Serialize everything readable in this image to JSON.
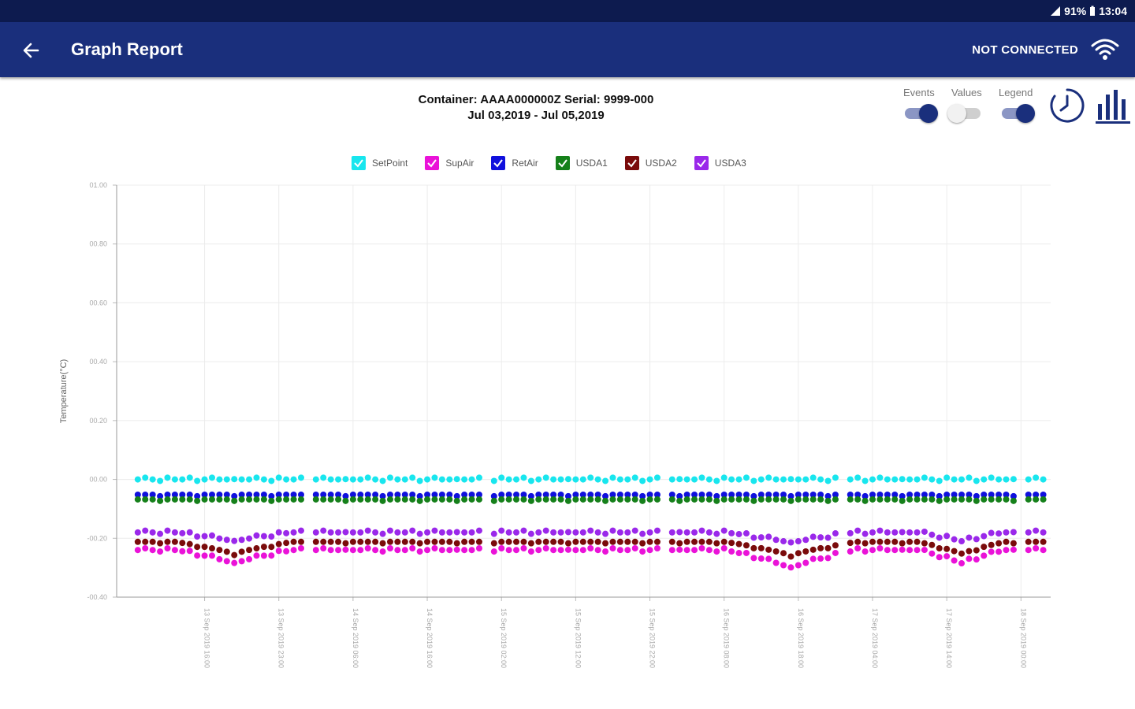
{
  "status_bar": {
    "battery": "91%",
    "time": "13:04"
  },
  "app_bar": {
    "title": "Graph Report",
    "connection_status": "NOT CONNECTED"
  },
  "header": {
    "container_line": "Container: AAAA000000Z Serial: 9999-000",
    "date_range": "Jul 03,2019 - Jul 05,2019"
  },
  "toggles": [
    {
      "label": "Events",
      "state": "on"
    },
    {
      "label": "Values",
      "state": "off"
    },
    {
      "label": "Legend",
      "state": "on"
    }
  ],
  "colors": {
    "primary": "#1a2f7c",
    "status_bar": "#0d1b4f"
  },
  "chart_data": {
    "type": "scatter",
    "title": "",
    "xlabel": "",
    "ylabel": "Temperature(°C)",
    "ylim": [
      -0.4,
      1.0
    ],
    "yticks": [
      "01.00",
      "00.80",
      "00.60",
      "00.40",
      "00.20",
      "00.00",
      "-00.20",
      "-00.40"
    ],
    "ytick_values": [
      1.0,
      0.8,
      0.6,
      0.4,
      0.2,
      0.0,
      -0.2,
      -0.4
    ],
    "xlim": [
      0,
      125
    ],
    "x_tick_positions": [
      11,
      21,
      31,
      41,
      51,
      61,
      71,
      81,
      91,
      101,
      111,
      121
    ],
    "x_tick_labels": [
      "13 Sep 2019 16:00",
      "13 Sep 2019 23:00",
      "14 Sep 2019 06:00",
      "14 Sep 2019 16:00",
      "15 Sep 2019 02:00",
      "15 Sep 2019 12:00",
      "15 Sep 2019 22:00",
      "16 Sep 2019 08:00",
      "16 Sep 2019 18:00",
      "17 Sep 2019 04:00",
      "17 Sep 2019 14:00",
      "18 Sep 2019 00:00"
    ],
    "segments": [
      [
        2,
        24
      ],
      [
        26,
        48
      ],
      [
        50,
        72
      ],
      [
        74,
        96
      ],
      [
        98,
        120
      ],
      [
        122,
        124
      ]
    ],
    "legend_position": "top-center",
    "series": [
      {
        "name": "SetPoint",
        "color": "#18e6ee",
        "base": 0.0,
        "dips": []
      },
      {
        "name": "SupAir",
        "color": "#ea12d8",
        "base": -0.24,
        "dips": [
          {
            "center": 15,
            "width": 8,
            "depth": -0.045
          },
          {
            "center": 90,
            "width": 9,
            "depth": -0.06
          },
          {
            "center": 113,
            "width": 6,
            "depth": -0.045
          }
        ]
      },
      {
        "name": "RetAir",
        "color": "#1010dd",
        "base": -0.052,
        "dips": []
      },
      {
        "name": "USDA1",
        "color": "#15801a",
        "base": -0.068,
        "dips": []
      },
      {
        "name": "USDA2",
        "color": "#7a0b0b",
        "base": -0.212,
        "dips": [
          {
            "center": 15,
            "width": 8,
            "depth": -0.04
          },
          {
            "center": 90,
            "width": 9,
            "depth": -0.045
          },
          {
            "center": 113,
            "width": 6,
            "depth": -0.04
          }
        ]
      },
      {
        "name": "USDA3",
        "color": "#9a28ea",
        "base": -0.18,
        "dips": [
          {
            "center": 15,
            "width": 8,
            "depth": -0.03
          },
          {
            "center": 90,
            "width": 9,
            "depth": -0.035
          },
          {
            "center": 113,
            "width": 6,
            "depth": -0.03
          }
        ]
      }
    ]
  }
}
